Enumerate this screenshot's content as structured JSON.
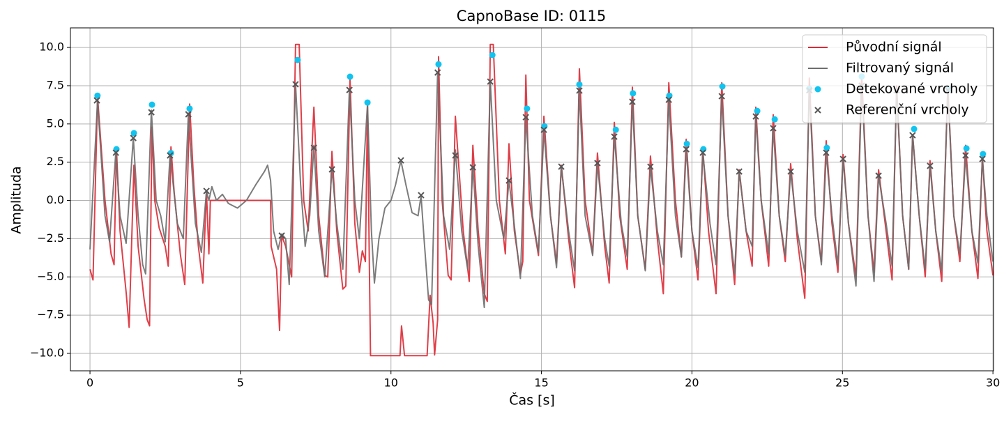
{
  "chart_data": {
    "type": "line",
    "title": "CapnoBase ID: 0115",
    "xlabel": "Čas [s]",
    "ylabel": "Amplituda",
    "xlim": [
      -0.65,
      30.02
    ],
    "ylim": [
      -11.14,
      11.28
    ],
    "xticks": [
      0,
      5,
      10,
      15,
      20,
      25,
      30
    ],
    "yticks": [
      {
        "value": -10,
        "label": "−10.0"
      },
      {
        "value": -7.5,
        "label": "−7.5"
      },
      {
        "value": -5,
        "label": "−5.0"
      },
      {
        "value": -2.5,
        "label": "−2.5"
      },
      {
        "value": 0,
        "label": "0.0"
      },
      {
        "value": 2.5,
        "label": "2.5"
      },
      {
        "value": 5,
        "label": "5.0"
      },
      {
        "value": 7.5,
        "label": "7.5"
      },
      {
        "value": 10,
        "label": "10.0"
      }
    ],
    "grid": true,
    "legend": "upper right",
    "series": [
      {
        "name": "Původní signál",
        "type": "line",
        "color": "#dc2a35",
        "x": [
          0,
          0.1,
          0.25,
          0.5,
          0.7,
          0.8,
          0.88,
          1.0,
          1.2,
          1.3,
          1.46,
          1.6,
          1.8,
          1.9,
          1.98,
          2.06,
          2.15,
          2.3,
          2.5,
          2.6,
          2.69,
          2.8,
          3.0,
          3.15,
          3.31,
          3.45,
          3.6,
          3.75,
          3.87,
          3.95,
          4.0,
          6.0,
          6.02,
          6.2,
          6.3,
          6.37,
          6.5,
          6.7,
          6.83,
          6.95,
          7.1,
          7.25,
          7.44,
          7.6,
          7.8,
          7.9,
          8.04,
          8.2,
          8.4,
          8.5,
          8.64,
          8.8,
          8.95,
          9.05,
          9.15,
          9.22,
          9.28,
          9.32,
          10.3,
          10.35,
          10.45,
          11.2,
          11.3,
          11.4,
          11.45,
          11.55,
          11.58,
          11.7,
          11.9,
          12.0,
          12.14,
          12.4,
          12.6,
          12.72,
          12.9,
          13.1,
          13.2,
          13.3,
          13.4,
          13.6,
          13.8,
          13.92,
          14.1,
          14.3,
          14.38,
          14.48,
          14.6,
          14.9,
          15.08,
          15.3,
          15.5,
          15.66,
          15.9,
          16.1,
          16.26,
          16.45,
          16.7,
          16.86,
          17.1,
          17.25,
          17.42,
          17.6,
          17.85,
          18.02,
          18.2,
          18.45,
          18.62,
          18.85,
          19.05,
          19.23,
          19.45,
          19.65,
          19.81,
          20.0,
          20.2,
          20.36,
          20.55,
          20.8,
          20.99,
          21.2,
          21.42,
          21.57,
          21.8,
          22.0,
          22.12,
          22.3,
          22.55,
          22.7,
          22.9,
          23.1,
          23.28,
          23.5,
          23.75,
          23.9,
          24.1,
          24.3,
          24.46,
          24.65,
          24.85,
          25.02,
          25.2,
          25.45,
          25.64,
          25.85,
          26.05,
          26.2,
          26.45,
          26.65,
          26.8,
          27.0,
          27.2,
          27.33,
          27.55,
          27.75,
          27.91,
          28.1,
          28.3,
          28.5,
          28.7,
          28.9,
          29.09,
          29.3,
          29.5,
          29.65,
          29.8,
          30.0
        ],
        "values": [
          -4.5,
          -5.2,
          6.8,
          0,
          -3.5,
          -4.2,
          3.4,
          -2,
          -6,
          -8.3,
          2.3,
          -3,
          -6.5,
          -7.8,
          -8.2,
          4.8,
          0,
          -1.8,
          -3,
          -4.3,
          3.5,
          0.5,
          -3.5,
          -5.5,
          6.3,
          1,
          -3,
          -5.4,
          0.6,
          -3.5,
          0,
          0,
          -3,
          -4.5,
          -8.5,
          -2.3,
          -3,
          -5,
          10.2,
          10.2,
          0,
          -2,
          6.1,
          -1,
          -4.9,
          -5,
          3.2,
          -2,
          -5.8,
          -5.6,
          7.95,
          -1.5,
          -4.7,
          -3.3,
          -4,
          6.3,
          -4,
          -10.15,
          -10.15,
          -8.2,
          -10.15,
          -10.15,
          -6.2,
          -8,
          -10.1,
          -7.8,
          9.4,
          0,
          -4.9,
          -5.2,
          5.5,
          -2,
          -5.3,
          3.6,
          -2,
          -6.1,
          -6.6,
          10.2,
          10.2,
          0,
          -3.5,
          3.7,
          -2,
          -4.8,
          -4,
          8.2,
          0,
          -3.6,
          5.5,
          -1,
          -4.1,
          2.3,
          -2.5,
          -5.7,
          8.6,
          0,
          -3.5,
          3.1,
          -3,
          -5.4,
          5.1,
          -1,
          -4.5,
          7.4,
          -1,
          -4.5,
          2.9,
          -2.5,
          -6.1,
          7.7,
          0,
          -3.7,
          4,
          -2,
          -5.2,
          3.4,
          -2,
          -6.1,
          7.7,
          -1,
          -5.5,
          2,
          -2,
          -4.3,
          6.1,
          0,
          -4.3,
          5.6,
          -1,
          -4,
          2.4,
          -2.5,
          -6.4,
          8,
          -1,
          -4,
          3.9,
          -1.5,
          -4.7,
          3,
          -1.5,
          -5,
          8.2,
          -1,
          -4.7,
          2,
          -2,
          -5.2,
          7.5,
          -1,
          -4.5,
          4.3,
          -1,
          -5,
          2.6,
          -2,
          -5.3,
          7.5,
          -1,
          -4,
          3.6,
          -2,
          -5.1,
          2.9,
          -2,
          -4.9
        ]
      },
      {
        "name": "Filtrovaný signál",
        "type": "line",
        "color": "#6e6e6e",
        "x": [
          0,
          0.25,
          0.5,
          0.65,
          0.86,
          1.0,
          1.2,
          1.44,
          1.6,
          1.75,
          1.85,
          2.04,
          2.2,
          2.35,
          2.5,
          2.66,
          2.9,
          3.1,
          3.27,
          3.5,
          3.7,
          3.87,
          3.95,
          4.05,
          4.2,
          4.4,
          4.6,
          4.9,
          5.2,
          5.5,
          5.8,
          5.9,
          6.0,
          6.1,
          6.25,
          6.37,
          6.5,
          6.62,
          6.83,
          7.0,
          7.15,
          7.3,
          7.44,
          7.6,
          7.8,
          8.04,
          8.2,
          8.4,
          8.62,
          8.8,
          8.95,
          9.22,
          9.35,
          9.45,
          9.6,
          9.8,
          10.0,
          10.15,
          10.33,
          10.5,
          10.7,
          10.9,
          11.0,
          11.1,
          11.25,
          11.35,
          11.55,
          11.75,
          11.95,
          12.14,
          12.35,
          12.55,
          12.72,
          12.9,
          13.1,
          13.3,
          13.5,
          13.75,
          13.92,
          14.15,
          14.3,
          14.48,
          14.7,
          14.9,
          15.08,
          15.3,
          15.5,
          15.66,
          15.9,
          16.1,
          16.26,
          16.45,
          16.7,
          16.86,
          17.1,
          17.25,
          17.42,
          17.65,
          17.85,
          18.02,
          18.2,
          18.45,
          18.62,
          18.85,
          19.05,
          19.23,
          19.45,
          19.65,
          19.81,
          20.0,
          20.2,
          20.36,
          20.6,
          20.8,
          20.99,
          21.2,
          21.42,
          21.57,
          21.8,
          22.0,
          22.12,
          22.3,
          22.55,
          22.7,
          22.9,
          23.1,
          23.28,
          23.5,
          23.75,
          23.9,
          24.1,
          24.3,
          24.46,
          24.65,
          24.85,
          25.02,
          25.2,
          25.45,
          25.64,
          25.85,
          26.05,
          26.2,
          26.45,
          26.65,
          26.8,
          27.0,
          27.2,
          27.33,
          27.55,
          27.75,
          27.91,
          28.1,
          28.3,
          28.5,
          28.7,
          28.9,
          29.09,
          29.3,
          29.5,
          29.65,
          29.8,
          30.0
        ],
        "values": [
          -3.2,
          6.5,
          -1,
          -2.7,
          3.2,
          -1,
          -2.8,
          4.1,
          -1,
          -4.2,
          -4.8,
          5.9,
          0,
          -1,
          -2.7,
          3,
          -1.5,
          -2.5,
          5.7,
          -1.5,
          -3.4,
          0.6,
          0,
          0.9,
          0,
          0.4,
          -0.2,
          -0.5,
          0,
          1,
          1.9,
          2.3,
          1.3,
          -2,
          -3.2,
          -2.2,
          -2.5,
          -5.5,
          7.6,
          1,
          -3,
          -1,
          3.6,
          -2,
          -5,
          2.1,
          -1.5,
          -4.5,
          7.3,
          0,
          -2.5,
          6.3,
          -2,
          -5.4,
          -2.5,
          -0.5,
          0,
          1,
          2.6,
          1,
          -0.8,
          -1,
          0.3,
          -2.5,
          -6.5,
          -6.8,
          8.4,
          -1,
          -3.2,
          3.3,
          -2,
          -4.5,
          2.2,
          -3,
          -7,
          7.8,
          0,
          -2.5,
          1.3,
          -2.5,
          -5.1,
          5.4,
          -1,
          -3.4,
          4.6,
          -1,
          -4.4,
          2.2,
          -2,
          -4.6,
          7.2,
          -1,
          -3.6,
          2.4,
          -2.5,
          -4.3,
          4.2,
          -1.5,
          -3.7,
          6.5,
          -1,
          -4.6,
          2.2,
          -2,
          -4.2,
          6.6,
          -1,
          -3.7,
          3.4,
          -2,
          -4.4,
          3.1,
          -1.5,
          -4.2,
          6.8,
          -1,
          -4.8,
          1.9,
          -2,
          -3,
          5.5,
          0,
          -3.5,
          4.7,
          -1,
          -3.6,
          1.9,
          -2,
          -4.7,
          7.3,
          -1,
          -4.2,
          3.1,
          -1,
          -4.2,
          2.7,
          -1.5,
          -5.6,
          7.6,
          -1,
          -5.3,
          1.6,
          -1.5,
          -4.3,
          7.3,
          -1,
          -4.5,
          4.3,
          -1,
          -4.5,
          2.3,
          -2,
          -4.6,
          7.3,
          -1,
          -3.5,
          2.9,
          -2,
          -4.1,
          2.7,
          -1,
          -4
        ]
      },
      {
        "name": "Detekované vrcholy",
        "type": "scatter",
        "marker": "o",
        "color": "#10c4ef",
        "x": [
          0.25,
          0.88,
          1.46,
          2.06,
          2.69,
          3.31,
          6.9,
          8.64,
          9.22,
          11.58,
          13.37,
          14.52,
          15.1,
          16.26,
          17.47,
          18.04,
          19.25,
          19.83,
          20.38,
          21.01,
          22.17,
          22.75,
          23.9,
          24.48,
          25.64,
          27.38,
          28.54,
          29.12,
          29.67
        ],
        "values": [
          6.85,
          3.35,
          4.4,
          6.26,
          3.1,
          6.0,
          9.18,
          8.09,
          6.4,
          8.9,
          9.5,
          6.0,
          4.85,
          7.58,
          4.62,
          7.0,
          6.85,
          3.7,
          3.35,
          7.45,
          5.85,
          5.3,
          7.3,
          3.44,
          8.1,
          4.67,
          7.3,
          3.4,
          3.03
        ]
      },
      {
        "name": "Referenční vrcholy",
        "type": "scatter",
        "marker": "x",
        "color": "#555555",
        "x": [
          0.23,
          0.86,
          1.44,
          2.04,
          2.66,
          3.27,
          3.87,
          6.37,
          6.83,
          7.44,
          8.04,
          8.62,
          10.33,
          11.0,
          11.55,
          12.14,
          12.72,
          13.3,
          13.92,
          14.48,
          15.08,
          15.66,
          16.26,
          16.86,
          17.42,
          18.02,
          18.62,
          19.23,
          19.81,
          20.36,
          20.99,
          21.57,
          22.12,
          22.7,
          23.28,
          23.9,
          24.46,
          25.02,
          25.64,
          26.2,
          26.8,
          27.33,
          27.91,
          28.5,
          29.09,
          29.65
        ],
        "values": [
          6.54,
          3.12,
          4.08,
          5.76,
          2.94,
          5.63,
          0.62,
          -2.3,
          7.59,
          3.44,
          2.03,
          7.22,
          2.62,
          0.34,
          8.36,
          2.94,
          2.16,
          7.77,
          1.3,
          5.44,
          4.62,
          2.21,
          7.18,
          2.44,
          4.17,
          6.45,
          2.21,
          6.58,
          3.35,
          3.12,
          6.81,
          1.89,
          5.49,
          4.72,
          1.89,
          7.2,
          3.12,
          2.71,
          7.5,
          1.62,
          7.2,
          4.26,
          2.26,
          7.2,
          2.94,
          2.71
        ]
      }
    ]
  }
}
